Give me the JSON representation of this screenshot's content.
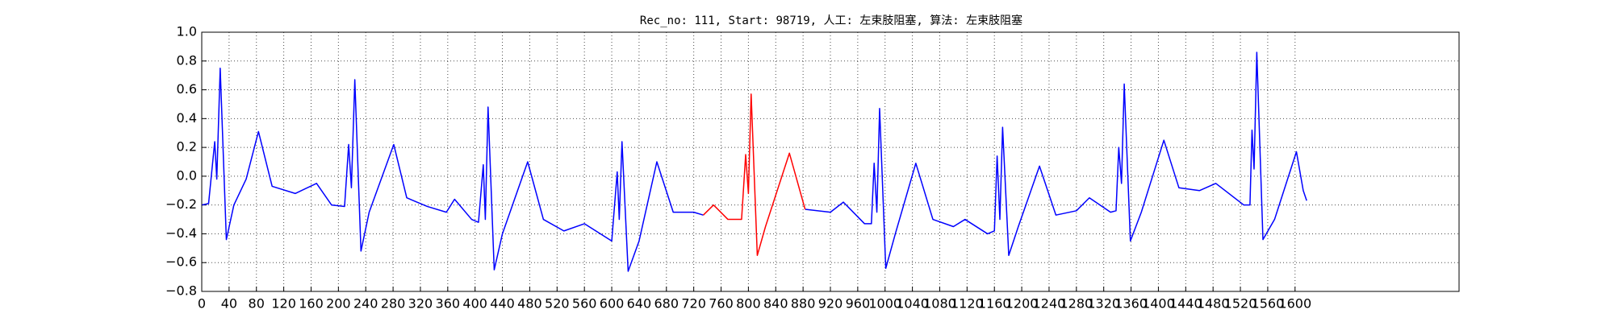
{
  "chart_data": {
    "type": "line",
    "title": "Rec_no: 111, Start: 98719, 人工: 左束肢阻塞, 算法: 左束肢阻塞",
    "x": [
      0,
      10,
      19,
      22,
      27,
      36,
      47,
      65,
      83,
      103,
      137,
      168,
      190,
      209,
      215,
      219,
      224,
      233,
      245,
      281,
      300,
      330,
      358,
      370,
      395,
      405,
      412,
      415,
      419,
      428,
      440,
      477,
      500,
      530,
      560,
      600,
      608,
      611,
      615,
      624,
      640,
      666,
      690,
      720,
      734,
      749,
      770,
      790,
      796,
      800,
      804,
      813,
      825,
      860,
      883,
      920,
      939,
      970,
      980,
      984,
      988,
      992,
      1001,
      1015,
      1045,
      1070,
      1100,
      1117,
      1150,
      1160,
      1164,
      1168,
      1172,
      1181,
      1195,
      1226,
      1250,
      1280,
      1299,
      1330,
      1338,
      1342,
      1346,
      1350,
      1359,
      1375,
      1408,
      1430,
      1460,
      1484,
      1525,
      1534,
      1537,
      1540,
      1544,
      1553,
      1570,
      1602,
      1612,
      1617
    ],
    "series": [
      {
        "color": "#0000ff",
        "values": [
          -0.2,
          -0.19,
          0.24,
          -0.02,
          0.75,
          -0.44,
          -0.2,
          -0.02,
          0.31,
          -0.07,
          -0.12,
          -0.05,
          -0.2,
          -0.21,
          0.22,
          -0.08,
          0.67,
          -0.52,
          -0.25,
          0.22,
          -0.15,
          -0.21,
          -0.25,
          -0.16,
          -0.3,
          -0.32,
          0.08,
          -0.3,
          0.48,
          -0.65,
          -0.4,
          0.1,
          -0.3,
          -0.38,
          -0.33,
          -0.45,
          0.03,
          -0.3,
          0.24,
          -0.66,
          -0.45,
          0.1,
          -0.25,
          -0.25,
          -0.27,
          null,
          null,
          null,
          null,
          null,
          null,
          null,
          null,
          null,
          -0.23,
          -0.25,
          -0.18,
          -0.33,
          -0.33,
          0.09,
          -0.25,
          0.47,
          -0.64,
          -0.4,
          0.09,
          -0.3,
          -0.35,
          -0.3,
          -0.4,
          -0.38,
          0.14,
          -0.3,
          0.34,
          -0.55,
          -0.35,
          0.07,
          -0.27,
          -0.24,
          -0.15,
          -0.25,
          -0.24,
          0.2,
          -0.05,
          0.64,
          -0.45,
          -0.25,
          0.25,
          -0.08,
          -0.1,
          -0.05,
          -0.2,
          -0.2,
          0.32,
          0.05,
          0.86,
          -0.44,
          -0.3,
          0.17,
          -0.1,
          -0.17
        ]
      },
      {
        "color": "#ff0000",
        "values": [
          null,
          null,
          null,
          null,
          null,
          null,
          null,
          null,
          null,
          null,
          null,
          null,
          null,
          null,
          null,
          null,
          null,
          null,
          null,
          null,
          null,
          null,
          null,
          null,
          null,
          null,
          null,
          null,
          null,
          null,
          null,
          null,
          null,
          null,
          null,
          null,
          null,
          null,
          null,
          null,
          null,
          null,
          null,
          null,
          -0.27,
          -0.2,
          -0.3,
          -0.3,
          0.15,
          -0.12,
          0.57,
          -0.55,
          -0.35,
          0.16,
          -0.23,
          null,
          null,
          null,
          null,
          null,
          null,
          null,
          null,
          null,
          null,
          null,
          null,
          null,
          null,
          null,
          null,
          null,
          null,
          null,
          null,
          null,
          null,
          null,
          null,
          null,
          null,
          null,
          null,
          null,
          null,
          null,
          null,
          null,
          null,
          null,
          null,
          null,
          null,
          null,
          null,
          null,
          null,
          null,
          null,
          null
        ]
      }
    ],
    "xlim": [
      0,
      1840
    ],
    "xticks": [
      0,
      40,
      80,
      120,
      160,
      200,
      240,
      280,
      320,
      360,
      400,
      440,
      480,
      520,
      560,
      600,
      640,
      680,
      720,
      760,
      800,
      840,
      880,
      920,
      960,
      1000,
      1040,
      1080,
      1120,
      1160,
      1200,
      1240,
      1280,
      1320,
      1360,
      1400,
      1440,
      1480,
      1520,
      1560,
      1600
    ],
    "ylim": [
      -0.8,
      1.0
    ],
    "yticks": [
      {
        "value": -0.8,
        "label": "−0.8"
      },
      {
        "value": -0.6,
        "label": "−0.6"
      },
      {
        "value": -0.4,
        "label": "−0.4"
      },
      {
        "value": -0.2,
        "label": "−0.2"
      },
      {
        "value": 0,
        "label": "0.0"
      },
      0.2,
      0.4,
      0.6,
      0.8,
      {
        "value": 1,
        "label": "1.0"
      }
    ],
    "grid": true
  }
}
